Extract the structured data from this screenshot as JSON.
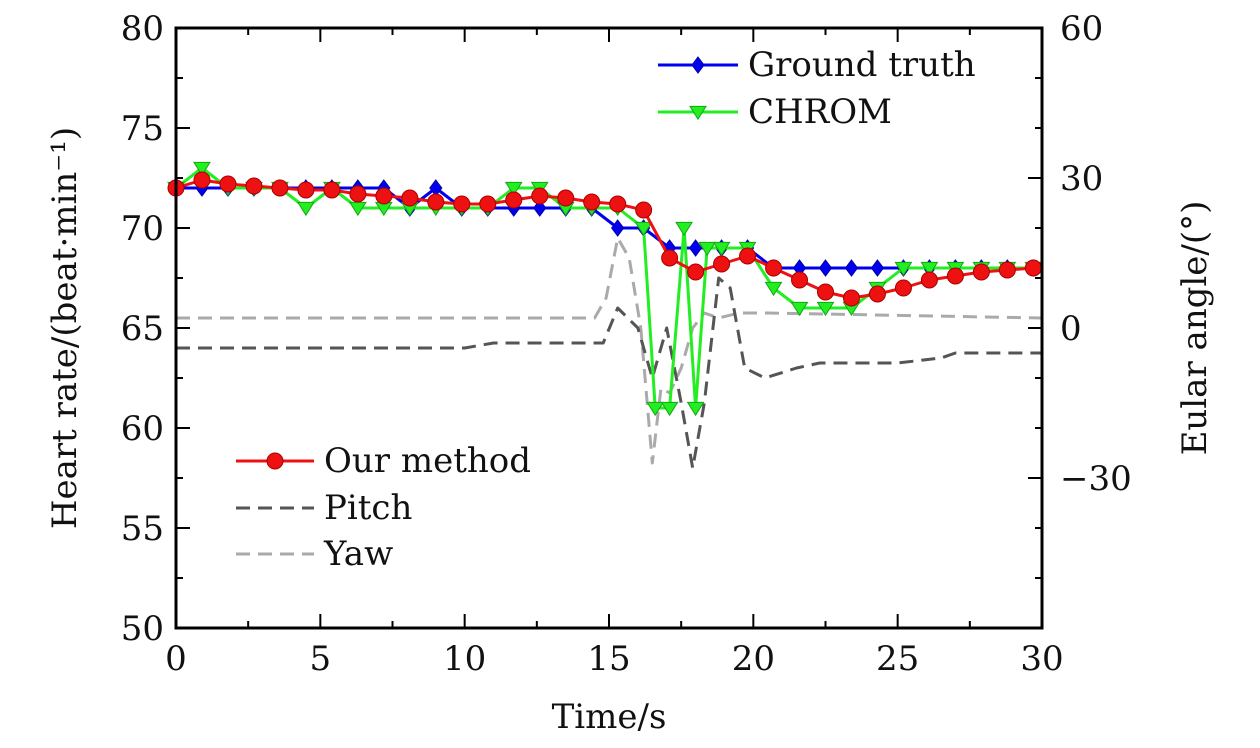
{
  "chart_data": {
    "type": "line",
    "xlabel": "Time/s",
    "ylabel_left": "Heart rate/(beat·min⁻¹)",
    "ylabel_right": "Eular angle/(°)",
    "xlim": [
      0,
      30
    ],
    "ylim_left": [
      50,
      80
    ],
    "ylim_right": [
      -60,
      60
    ],
    "x_ticks": [
      "0",
      "5",
      "10",
      "15",
      "20",
      "25",
      "30"
    ],
    "y_left_ticks": [
      "50",
      "55",
      "60",
      "65",
      "70",
      "75",
      "80"
    ],
    "y_right_ticks": [
      "−30",
      "0",
      "30",
      "60"
    ],
    "y_right_tick_values": [
      -30,
      0,
      30,
      60
    ],
    "grid": false,
    "legend_top": [
      "Ground truth",
      "CHROM"
    ],
    "legend_bottom": [
      "Our method",
      "Pitch",
      "Yaw"
    ],
    "colors": {
      "ground_truth": "#0000ee",
      "chrom": "#22ee22",
      "our_method": "#ee1111",
      "pitch": "#555555",
      "yaw": "#aaaaaa"
    },
    "series": [
      {
        "name": "Ground truth",
        "axis": "left",
        "style": "line-diamond",
        "x": [
          0,
          0.9,
          1.8,
          2.7,
          3.6,
          4.5,
          5.4,
          6.3,
          7.2,
          8.1,
          9.0,
          9.9,
          10.8,
          11.7,
          12.6,
          13.5,
          14.4,
          15.3,
          16.2,
          17.1,
          18.0,
          18.9,
          19.8,
          20.7,
          21.6,
          22.5,
          23.4,
          24.3,
          25.2,
          26.1,
          27.0,
          27.9,
          28.8,
          29.7
        ],
        "y": [
          72,
          72,
          72,
          72,
          72,
          72,
          72,
          72,
          72,
          71,
          72,
          71,
          71,
          71,
          71,
          71,
          71,
          70,
          70,
          69,
          69,
          69,
          69,
          68,
          68,
          68,
          68,
          68,
          68,
          68,
          68,
          68,
          68,
          68
        ]
      },
      {
        "name": "CHROM",
        "axis": "left",
        "style": "line-triangle",
        "x": [
          0,
          0.9,
          1.8,
          2.7,
          3.6,
          4.5,
          5.4,
          6.3,
          7.2,
          8.1,
          9.0,
          9.9,
          10.8,
          11.7,
          12.6,
          13.5,
          14.4,
          15.3,
          16.2,
          16.6,
          17.1,
          17.6,
          18.0,
          18.4,
          18.9,
          19.8,
          20.7,
          21.6,
          22.5,
          23.4,
          24.3,
          25.2,
          26.1,
          27.0,
          27.9,
          28.8,
          29.7
        ],
        "y": [
          72,
          73,
          72,
          72,
          72,
          71,
          72,
          71,
          71,
          71,
          71,
          71,
          71,
          72,
          72,
          71,
          71,
          71,
          70,
          61,
          61,
          70,
          61,
          69,
          69,
          69,
          67,
          66,
          66,
          66,
          67,
          68,
          68,
          68,
          68,
          68,
          68
        ]
      },
      {
        "name": "Our method",
        "axis": "left",
        "style": "line-circle",
        "x": [
          0,
          0.9,
          1.8,
          2.7,
          3.6,
          4.5,
          5.4,
          6.3,
          7.2,
          8.1,
          9.0,
          9.9,
          10.8,
          11.7,
          12.6,
          13.5,
          14.4,
          15.3,
          16.2,
          17.1,
          18.0,
          18.9,
          19.8,
          20.7,
          21.6,
          22.5,
          23.4,
          24.3,
          25.2,
          26.1,
          27.0,
          27.9,
          28.8,
          29.7
        ],
        "y": [
          72,
          72.4,
          72.2,
          72.1,
          72.0,
          71.9,
          71.9,
          71.7,
          71.6,
          71.5,
          71.3,
          71.2,
          71.2,
          71.4,
          71.6,
          71.5,
          71.3,
          71.2,
          70.9,
          68.5,
          67.8,
          68.2,
          68.6,
          68.0,
          67.4,
          66.8,
          66.5,
          66.7,
          67.0,
          67.4,
          67.6,
          67.8,
          67.9,
          68.0
        ]
      },
      {
        "name": "Pitch",
        "axis": "right",
        "style": "dashed",
        "x": [
          0,
          5,
          10,
          11,
          14.8,
          15.3,
          16.0,
          16.5,
          17.0,
          17.5,
          17.9,
          18.3,
          18.8,
          19.2,
          19.7,
          20.4,
          21.5,
          22.3,
          25.0,
          26.5,
          27.0,
          30.0
        ],
        "y": [
          -4,
          -4,
          -4,
          -3,
          -3,
          4,
          0,
          -10,
          0,
          -15,
          -28,
          -15,
          10,
          8,
          -8,
          -10,
          -8,
          -7,
          -7,
          -6,
          -5,
          -5
        ]
      },
      {
        "name": "Yaw",
        "axis": "right",
        "style": "dashed",
        "x": [
          0,
          14.5,
          14.9,
          15.3,
          15.7,
          16.1,
          16.5,
          16.8,
          17.1,
          17.5,
          17.9,
          18.3,
          18.8,
          19.5,
          20.5,
          30.0
        ],
        "y": [
          2,
          2,
          6,
          18,
          14,
          0,
          -27,
          -12,
          -13,
          -8,
          0,
          3,
          2,
          3,
          3,
          2
        ]
      }
    ]
  }
}
